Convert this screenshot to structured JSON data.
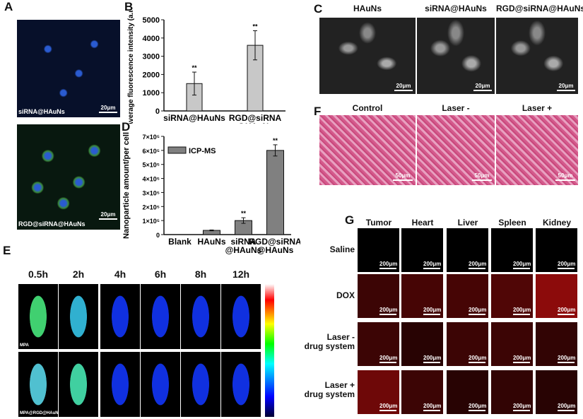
{
  "panels": {
    "A": {
      "label": "A",
      "captions": [
        "siRNA@HAuNs",
        "RGD@siRNA@HAuNs"
      ],
      "scale": "20μm"
    },
    "B": {
      "label": "B"
    },
    "C": {
      "label": "C",
      "columns": [
        "HAuNs",
        "siRNA@HAuNs",
        "RGD@siRNA@HAuNs"
      ],
      "scale": "20μm"
    },
    "D": {
      "label": "D"
    },
    "E": {
      "label": "E",
      "timepoints": [
        "0.5h",
        "2h",
        "4h",
        "6h",
        "8h",
        "12h"
      ],
      "row_captions": [
        "MPA",
        "MPA@RGD@HAuNs"
      ]
    },
    "F": {
      "label": "F",
      "columns": [
        "Control",
        "Laser -",
        "Laser +"
      ],
      "scale": "50μm"
    },
    "G": {
      "label": "G",
      "columns": [
        "Tumor",
        "Heart",
        "Liver",
        "Spleen",
        "Kidney"
      ],
      "rows": [
        "Saline",
        "DOX",
        "Laser -\ndrug system",
        "Laser +\ndrug system"
      ],
      "scale": "200μm"
    }
  },
  "chart_data": [
    {
      "type": "bar",
      "panel": "B",
      "categories": [
        "siRNA@HAuNs",
        "RGD@siRNA\n@HAuNs"
      ],
      "values": [
        1500,
        3600
      ],
      "errors": [
        630,
        800
      ],
      "annotations": [
        "**",
        "**"
      ],
      "ylabel": "Average fluorescence intensity (a.u.)",
      "ylim": [
        0,
        5000
      ],
      "yticks": [
        "0",
        "1000",
        "2000",
        "3000",
        "4000",
        "5000"
      ],
      "bar_color": "#c8c8c8"
    },
    {
      "type": "bar",
      "panel": "D",
      "categories": [
        "Blank",
        "HAuNs",
        "siRNA\n@HAuNs",
        "RGD@siRNA\n@HAuNs"
      ],
      "values": [
        0,
        30000,
        100000,
        600000
      ],
      "errors": [
        0,
        3000,
        20000,
        40000
      ],
      "annotations": [
        "",
        "",
        "**",
        "**"
      ],
      "ylabel": "Nanoparticle amount/per cell",
      "ylim": [
        0,
        700000
      ],
      "yticks": [
        "0",
        "1×10⁵",
        "2×10⁵",
        "3×10⁵",
        "4×10⁵",
        "5×10⁵",
        "6×10⁵",
        "7×10⁵"
      ],
      "legend": "ICP-MS",
      "legend_position": "top-left",
      "bar_color": "#808080"
    }
  ],
  "colors": {
    "colorbar": [
      "#000030",
      "#0000ff",
      "#00ffff",
      "#00ff00",
      "#ffff00",
      "#ff0000",
      "#ffffff"
    ]
  }
}
